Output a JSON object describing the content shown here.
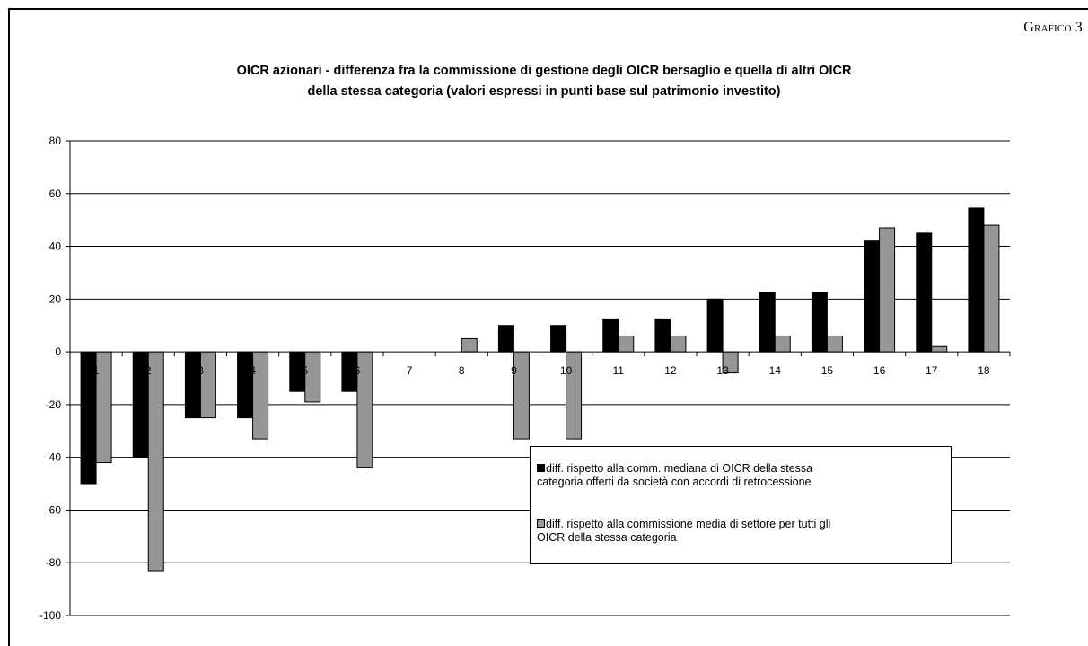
{
  "figure_label": "Grafico 3",
  "chart_data": {
    "type": "bar",
    "title_line1": "OICR azionari - differenza fra la commissione di gestione degli OICR bersaglio e quella di altri OICR",
    "title_line2": "della stessa categoria (valori espressi in punti base sul patrimonio investito)",
    "xlabel": "",
    "ylabel": "",
    "ylim": [
      -100,
      80
    ],
    "yticks": [
      80,
      60,
      40,
      20,
      0,
      -20,
      -40,
      -60,
      -80,
      -100
    ],
    "categories": [
      "1",
      "2",
      "3",
      "4",
      "5",
      "6",
      "7",
      "8",
      "9",
      "10",
      "11",
      "12",
      "13",
      "14",
      "15",
      "16",
      "17",
      "18"
    ],
    "grid": true,
    "legend_position": "lower-right",
    "series": [
      {
        "name": "diff. rispetto alla comm. mediana di OICR della stessa categoria offerti da società con accordi di retrocessione",
        "color": "#000000",
        "values": [
          -50,
          -40,
          -25,
          -25,
          -15,
          -15,
          0,
          0,
          10,
          10,
          12.5,
          12.5,
          20,
          22.5,
          22.5,
          42,
          45,
          54.5
        ]
      },
      {
        "name": "diff. rispetto alla commissione media di settore per tutti gli OICR della stessa categoria",
        "color": "#969696",
        "values": [
          -42,
          -83,
          -25,
          -33,
          -19,
          -44,
          0,
          5,
          -33,
          -33,
          6,
          6,
          -8,
          6,
          6,
          47,
          2,
          48
        ]
      }
    ]
  },
  "legend": {
    "item1_line1": "diff. rispetto alla comm. mediana di OICR della stessa",
    "item1_line2": "categoria offerti da società con accordi di retrocessione",
    "item2_line1": "diff. rispetto alla commissione media di settore per tutti gli",
    "item2_line2": "OICR della stessa categoria"
  }
}
